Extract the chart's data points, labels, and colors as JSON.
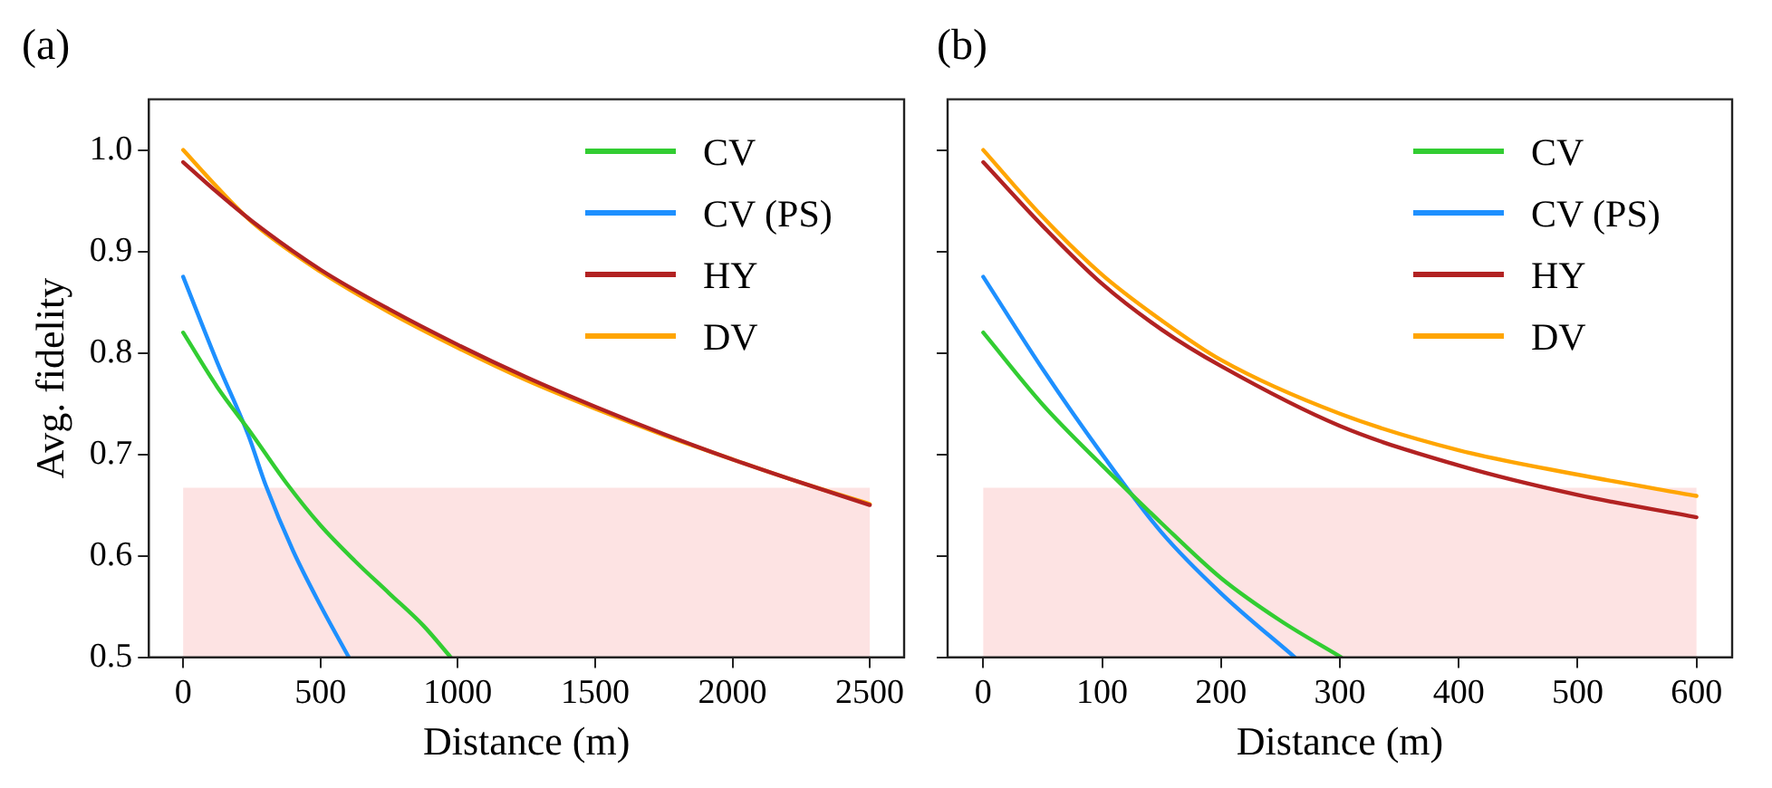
{
  "chart_data": [
    {
      "type": "line",
      "title": "(a)",
      "xlabel": "Distance (m)",
      "ylabel": "Avg. fidelity",
      "xlim": [
        -125,
        2625
      ],
      "xticks": [
        0,
        500,
        1000,
        1500,
        2000,
        2500
      ],
      "ylim": [
        0.5,
        1.05
      ],
      "yticks": [
        0.5,
        0.6,
        0.7,
        0.8,
        0.9,
        {
          "value": 1,
          "label": "1.0"
        }
      ],
      "grid": false,
      "legend": "top right",
      "bands": [
        {
          "axis": "y",
          "from": 0.5,
          "to": 0.667,
          "color": "#fde3e3"
        }
      ],
      "series": [
        {
          "name": "CV",
          "color": "#32cd32",
          "x": [
            0,
            125,
            250,
            375,
            500,
            625,
            750,
            875,
            974
          ],
          "values": [
            0.82,
            0.766,
            0.72,
            0.672,
            0.63,
            0.595,
            0.563,
            0.531,
            0.5
          ]
        },
        {
          "name": "CV (PS)",
          "color": "#1e90ff",
          "x": [
            0,
            125,
            237,
            300,
            400,
            500,
            603
          ],
          "values": [
            0.875,
            0.79,
            0.719,
            0.67,
            0.605,
            0.551,
            0.5
          ]
        },
        {
          "name": "HY",
          "color": "#b22222",
          "x": [
            0,
            125,
            250,
            500,
            750,
            1000,
            1250,
            1500,
            1750,
            2000,
            2250,
            2500
          ],
          "values": [
            0.988,
            0.958,
            0.93,
            0.882,
            0.843,
            0.808,
            0.776,
            0.747,
            0.72,
            0.695,
            0.672,
            0.65
          ]
        },
        {
          "name": "DV",
          "color": "#ffa500",
          "x": [
            0,
            125,
            250,
            500,
            750,
            1000,
            1250,
            1500,
            1750,
            2000,
            2250,
            2500
          ],
          "values": [
            1.0,
            0.963,
            0.929,
            0.88,
            0.84,
            0.805,
            0.773,
            0.745,
            0.719,
            0.695,
            0.672,
            0.651
          ]
        }
      ]
    },
    {
      "type": "line",
      "title": "(b)",
      "xlabel": "Distance (m)",
      "xlim": [
        -30,
        630
      ],
      "xticks": [
        0,
        100,
        200,
        300,
        400,
        500,
        600
      ],
      "ylim": [
        0.5,
        1.05
      ],
      "yticks": [
        0.5,
        0.6,
        0.7,
        0.8,
        0.9,
        1
      ],
      "tick_labels": "x",
      "grid": false,
      "legend": "top right",
      "bands": [
        {
          "axis": "y",
          "from": 0.5,
          "to": 0.667,
          "color": "#fde3e3"
        }
      ],
      "series": [
        {
          "name": "CV",
          "color": "#32cd32",
          "x": [
            0,
            50,
            100,
            150,
            200,
            250,
            301
          ],
          "values": [
            0.82,
            0.749,
            0.689,
            0.632,
            0.578,
            0.536,
            0.5
          ]
        },
        {
          "name": "CV (PS)",
          "color": "#1e90ff",
          "x": [
            0,
            50,
            100,
            150,
            200,
            262
          ],
          "values": [
            0.875,
            0.784,
            0.7,
            0.623,
            0.563,
            0.5
          ]
        },
        {
          "name": "HY",
          "color": "#b22222",
          "x": [
            0,
            50,
            100,
            150,
            200,
            300,
            400,
            500,
            600
          ],
          "values": [
            0.988,
            0.925,
            0.868,
            0.823,
            0.787,
            0.728,
            0.689,
            0.66,
            0.638
          ]
        },
        {
          "name": "DV",
          "color": "#ffa500",
          "x": [
            0,
            50,
            100,
            150,
            200,
            300,
            400,
            500,
            600
          ],
          "values": [
            1.0,
            0.934,
            0.877,
            0.832,
            0.793,
            0.74,
            0.704,
            0.68,
            0.659
          ]
        }
      ]
    }
  ]
}
